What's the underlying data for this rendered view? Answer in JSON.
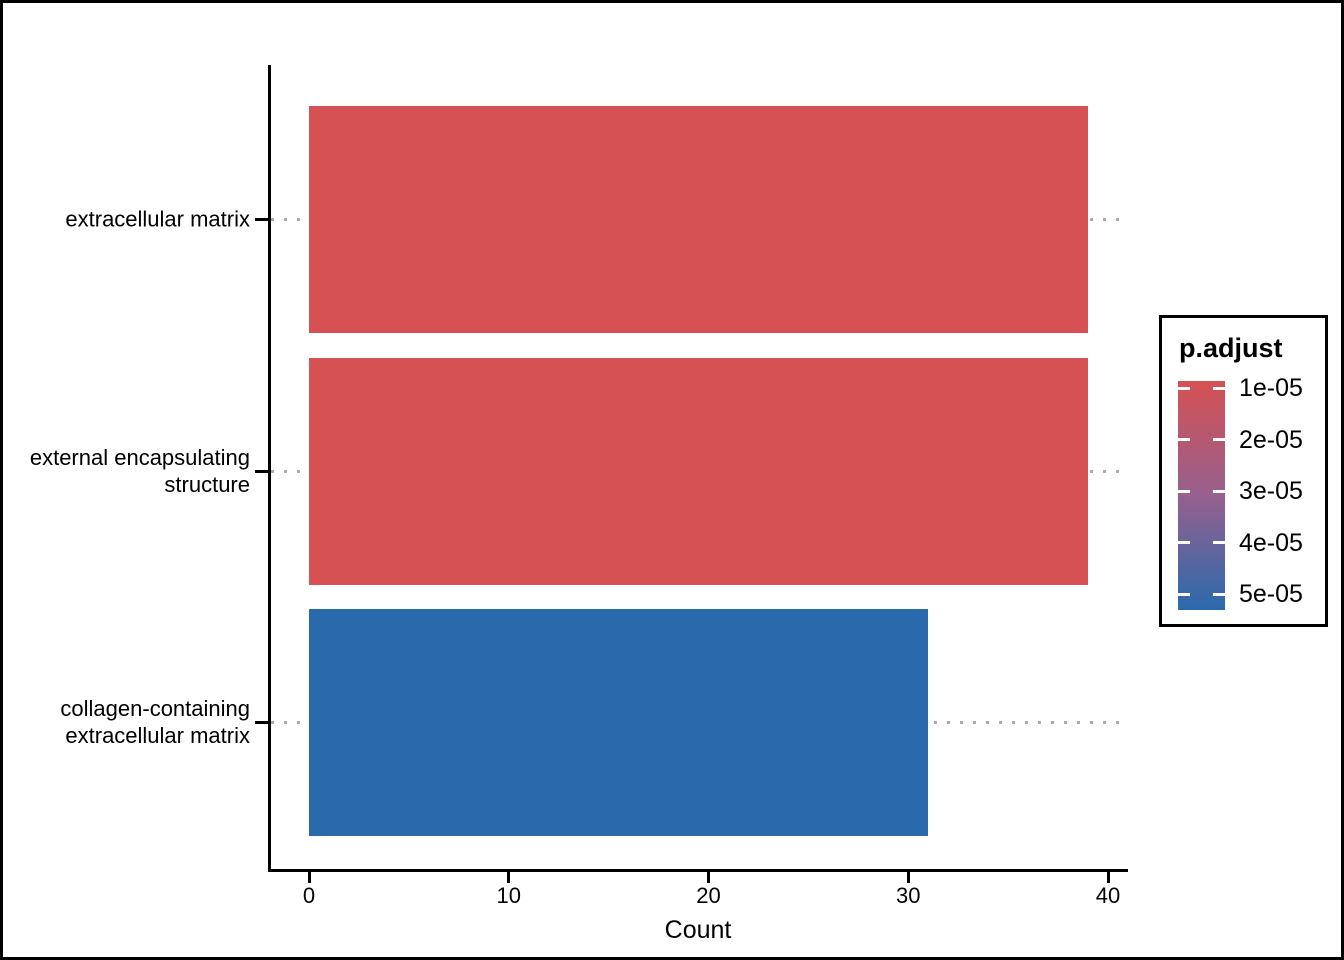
{
  "chart_data": {
    "type": "bar",
    "orientation": "horizontal",
    "title": "",
    "xlabel": "Count",
    "ylabel": "",
    "categories": [
      "extracellular matrix",
      "external encapsulating structure",
      "collagen-containing extracellular matrix"
    ],
    "category_lines": [
      [
        "extracellular matrix"
      ],
      [
        "external encapsulating",
        "structure"
      ],
      [
        "collagen-containing",
        "extracellular matrix"
      ]
    ],
    "values": [
      39,
      39,
      31
    ],
    "bar_colors": [
      "#D55154",
      "#D55154",
      "#2A6AAC"
    ],
    "x_ticks": [
      "0",
      "10",
      "20",
      "30",
      "40"
    ],
    "x_tick_values": [
      0,
      10,
      20,
      30,
      40
    ],
    "xlim": [
      0,
      40
    ],
    "grid": "dotted horizontal line at each category, light gray, drawn behind bars",
    "legend": {
      "title": "p.adjust",
      "position": "right",
      "type": "colorbar-gradient",
      "tick_labels": [
        "1e-05",
        "2e-05",
        "3e-05",
        "4e-05",
        "5e-05"
      ],
      "top_color": "#D55154",
      "mid_color": "#97608E",
      "bottom_color": "#2A6AAC"
    },
    "colors": {
      "axis": "#000000",
      "text": "#000000",
      "gridline": "#ABABAB",
      "background": "#FFFFFF",
      "figure_border": "#000000"
    }
  }
}
